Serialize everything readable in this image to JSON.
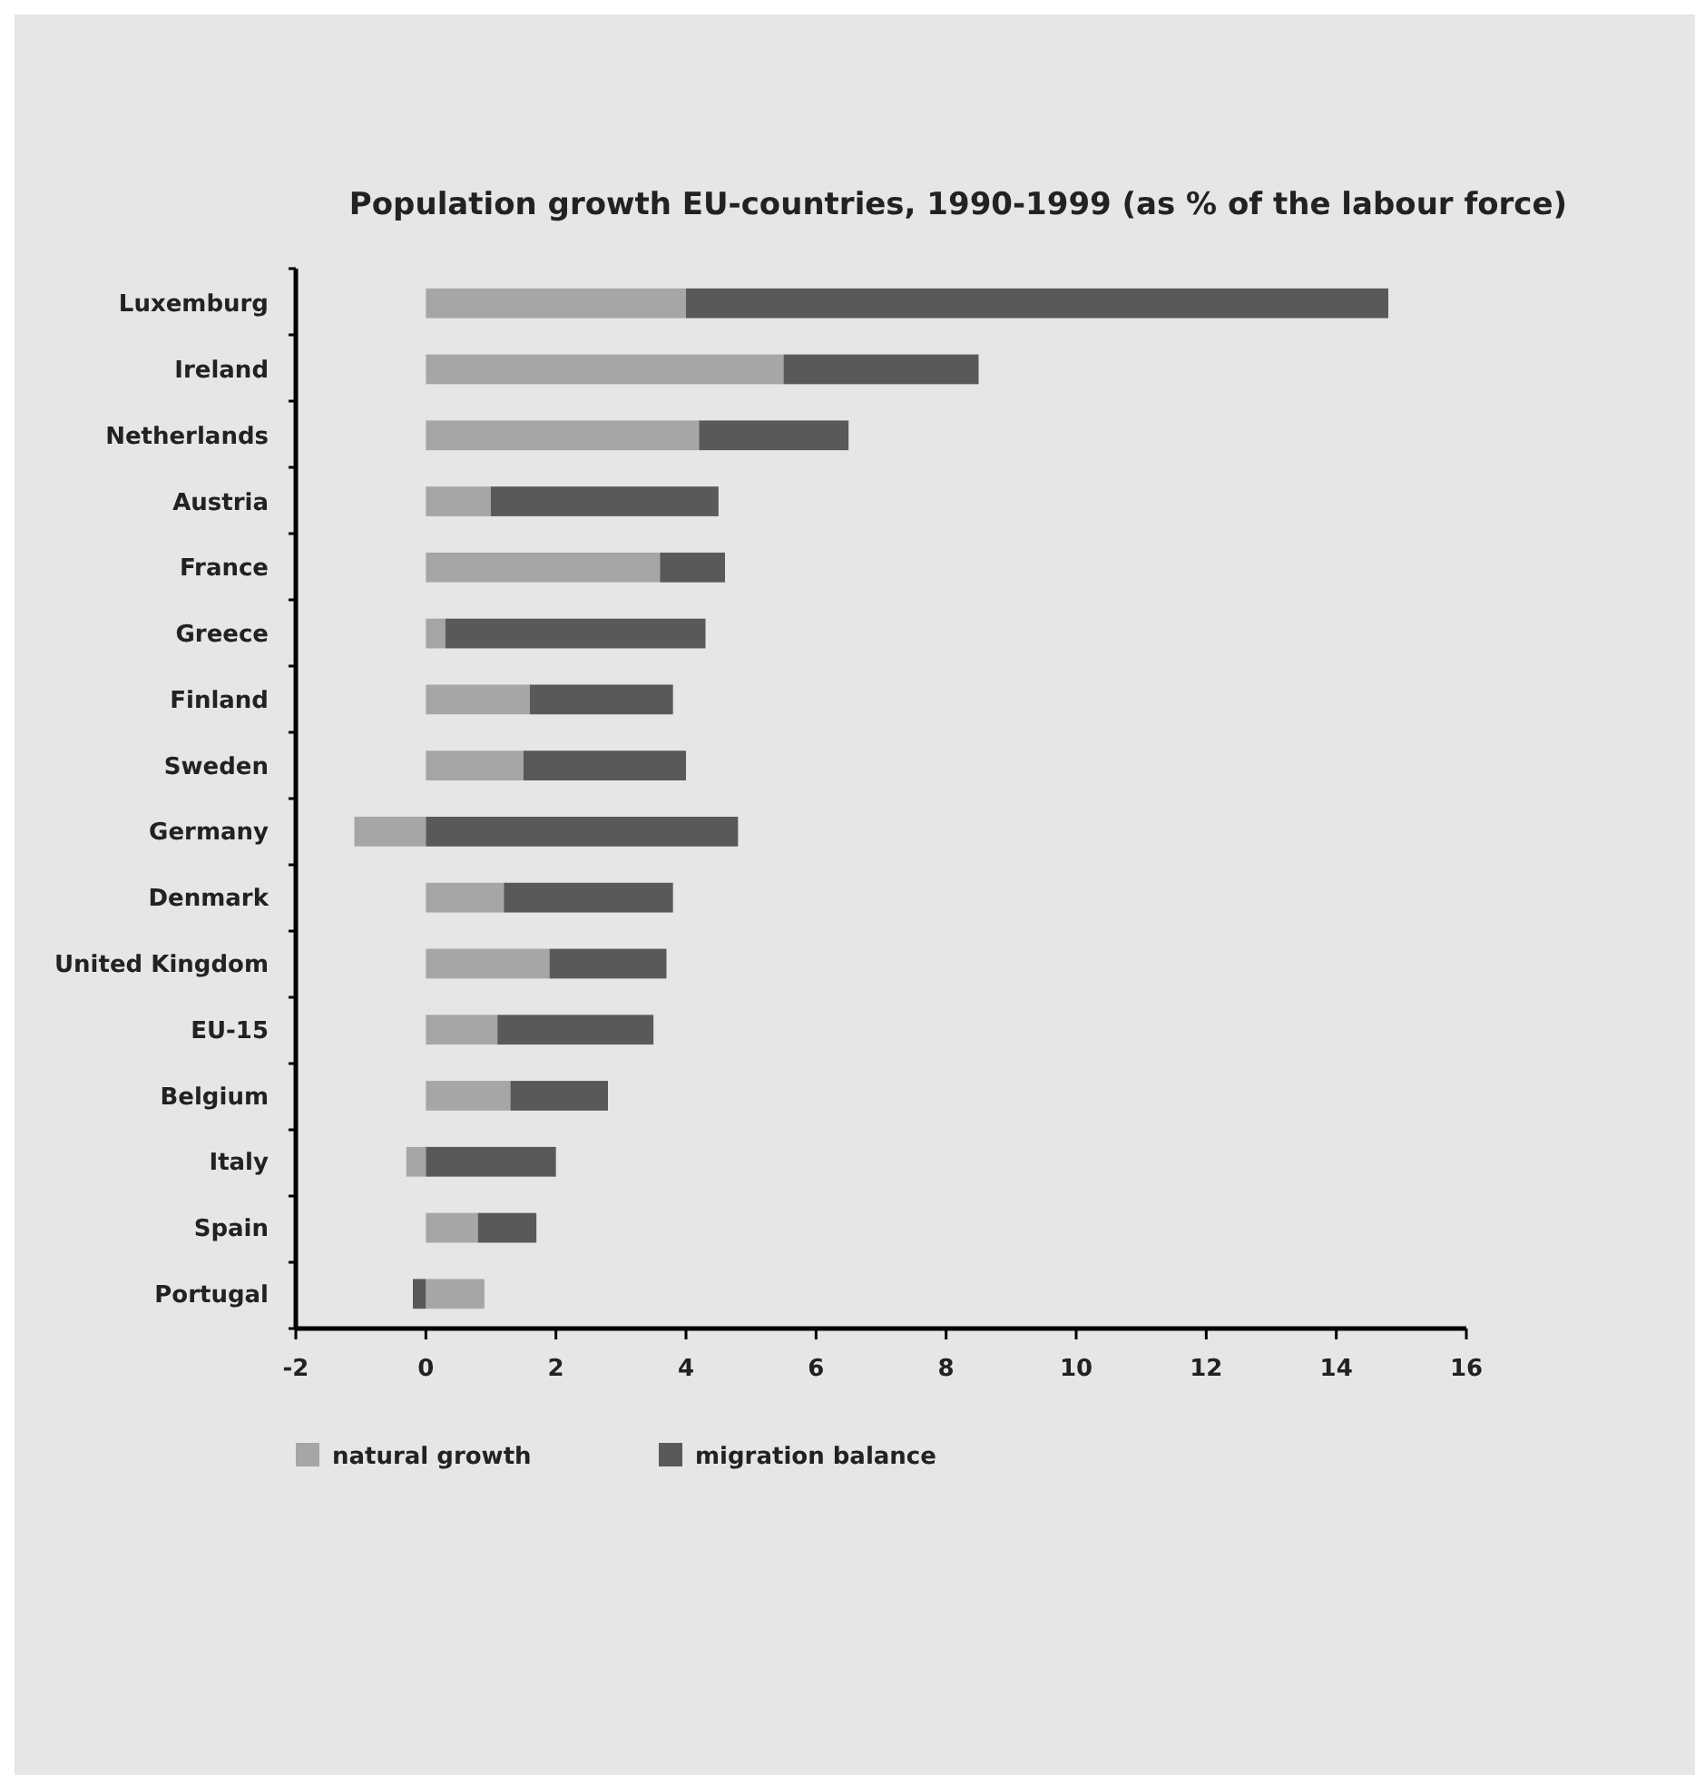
{
  "chart_data": {
    "type": "bar",
    "orientation": "horizontal",
    "stacked": true,
    "title": "Population growth EU-countries, 1990-1999 (as % of the labour force)",
    "categories": [
      "Luxemburg",
      "Ireland",
      "Netherlands",
      "Austria",
      "France",
      "Greece",
      "Finland",
      "Sweden",
      "Germany",
      "Denmark",
      "United Kingdom",
      "EU-15",
      "Belgium",
      "Italy",
      "Spain",
      "Portugal"
    ],
    "series": [
      {
        "name": "natural growth",
        "color": "#a6a6a6",
        "values": [
          4.0,
          5.5,
          4.2,
          1.0,
          3.6,
          0.3,
          1.6,
          1.5,
          -1.1,
          1.2,
          1.9,
          1.1,
          1.3,
          -0.3,
          0.8,
          0.9
        ]
      },
      {
        "name": "migration balance",
        "color": "#595959",
        "values": [
          10.8,
          3.0,
          2.3,
          3.5,
          1.0,
          4.0,
          2.2,
          2.5,
          4.8,
          2.6,
          1.8,
          2.4,
          1.5,
          2.0,
          0.9,
          -0.2
        ]
      }
    ],
    "xlim": [
      -2,
      16
    ],
    "xticks": [
      -2,
      0,
      2,
      4,
      6,
      8,
      10,
      12,
      14,
      16
    ],
    "grid": false,
    "legend": "bottom left"
  }
}
